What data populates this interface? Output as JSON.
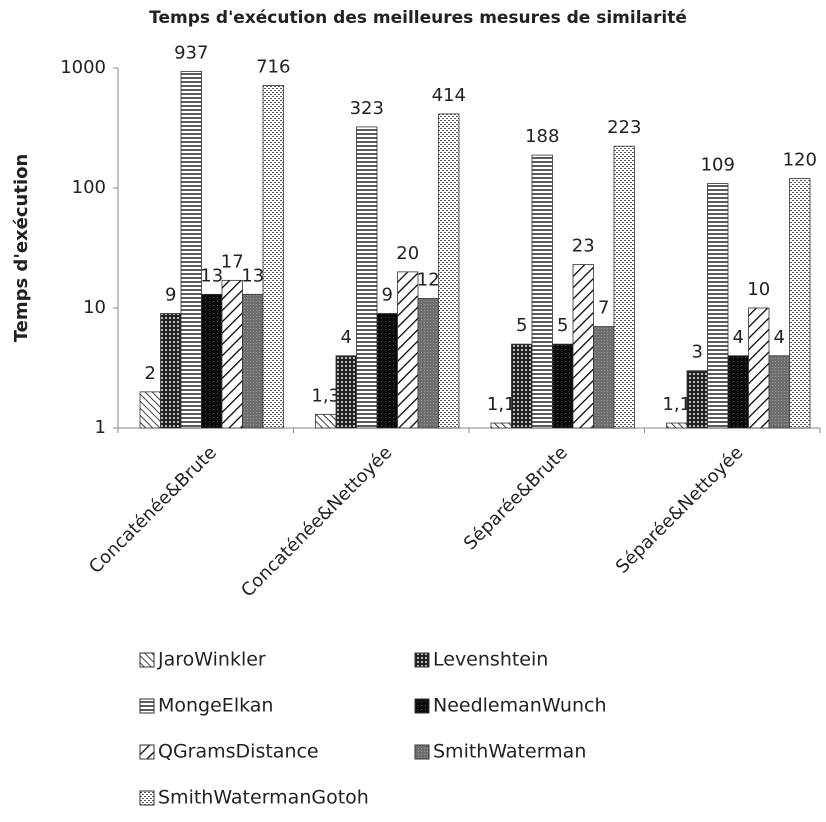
{
  "chart_data": {
    "type": "bar",
    "title": "Temps d'exécution des meilleures mesures de similarité",
    "ylabel": "Temps d'exécution",
    "categories": [
      "Concaténée&Brute",
      "Concaténée&Nettoyée",
      "Séparée&Brute",
      "Séparée&Nettoyée"
    ],
    "log": true,
    "grid": false,
    "ylim": [
      1,
      1000
    ],
    "yticks": [
      1,
      10,
      100,
      1000
    ],
    "series": [
      {
        "name": "JaroWinkler",
        "pattern": "diag-thin",
        "color": "#000000",
        "values": [
          2,
          1.3,
          1.1,
          1.1
        ],
        "value_labels": [
          "2",
          "1,3",
          "1,1",
          "1,1"
        ]
      },
      {
        "name": "Levenshtein",
        "pattern": "crosshatch",
        "color": "#000000",
        "values": [
          9,
          4,
          5,
          3
        ]
      },
      {
        "name": "MongeElkan",
        "pattern": "hlines",
        "color": "#000000",
        "values": [
          937,
          323,
          188,
          109
        ]
      },
      {
        "name": "NeedlemanWunch",
        "pattern": "solid",
        "color": "#000000",
        "values": [
          13,
          9,
          5,
          4
        ]
      },
      {
        "name": "QGramsDistance",
        "pattern": "diag-wide",
        "color": "#000000",
        "values": [
          17,
          20,
          23,
          10
        ]
      },
      {
        "name": "SmithWaterman",
        "pattern": "gray",
        "color": "#000000",
        "values": [
          13,
          12,
          7,
          4
        ]
      },
      {
        "name": "SmithWatermanGotoh",
        "pattern": "dots",
        "color": "#000000",
        "values": [
          716,
          414,
          223,
          120
        ]
      }
    ]
  }
}
